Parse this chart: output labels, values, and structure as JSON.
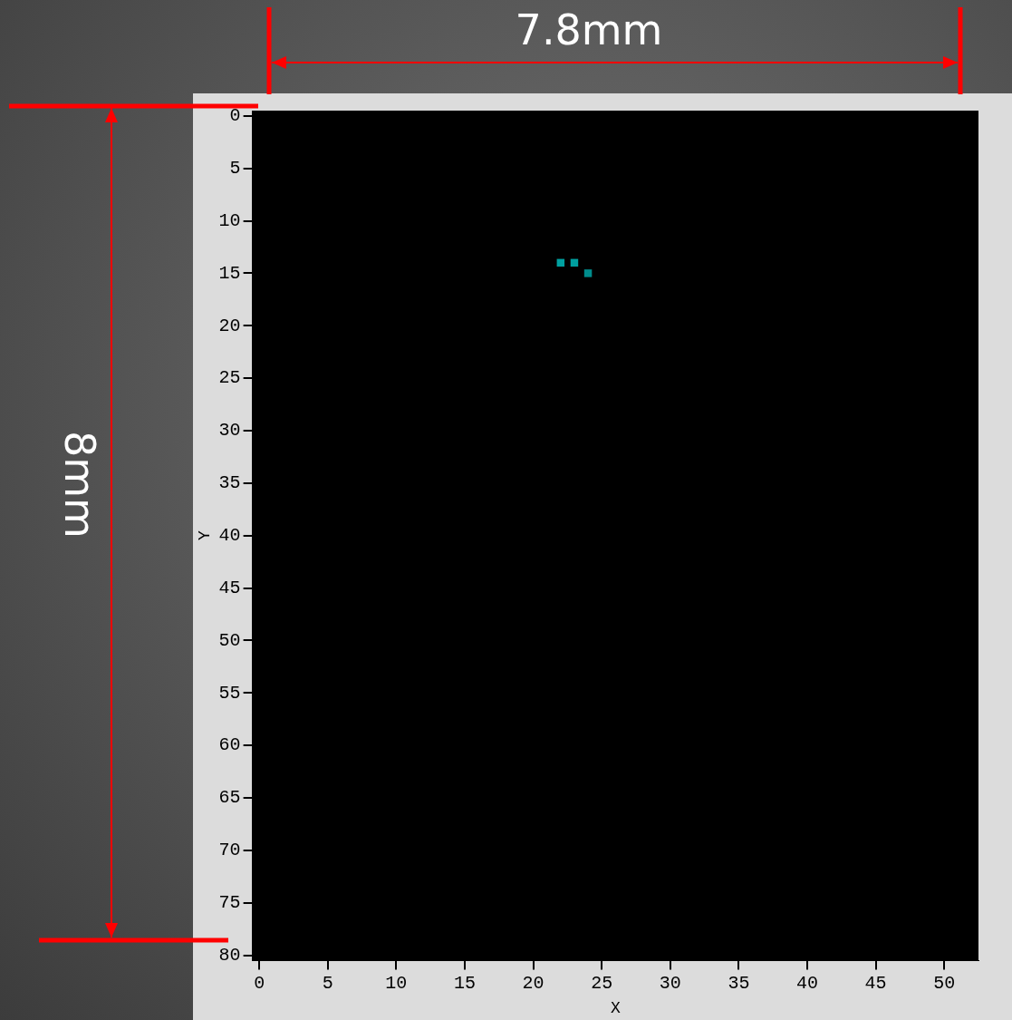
{
  "chart_data": {
    "type": "scatter",
    "xlabel": "X",
    "ylabel": "Y",
    "x": [
      22,
      23,
      24
    ],
    "values": [
      14,
      14,
      15
    ],
    "colors": [
      "#00a0a0",
      "#00a0a0",
      "#008c8c"
    ],
    "marker": "square",
    "xlim": [
      -0.5,
      52.5
    ],
    "ylim": [
      80.5,
      -0.5
    ],
    "xticks": [
      0,
      5,
      10,
      15,
      20,
      25,
      30,
      35,
      40,
      45,
      50
    ],
    "yticks": [
      0,
      5,
      10,
      15,
      20,
      25,
      30,
      35,
      40,
      45,
      50,
      55,
      60,
      65,
      70,
      75,
      80
    ],
    "annotations": [
      "7.8mm",
      "8mm"
    ]
  }
}
